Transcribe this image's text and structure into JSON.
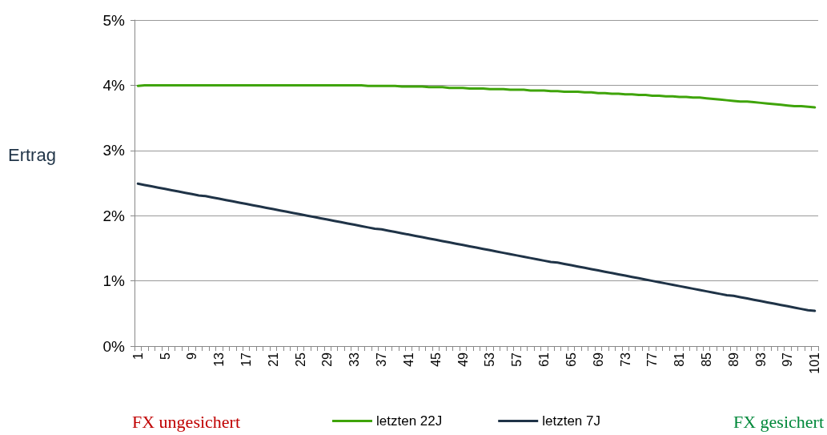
{
  "chart_data": {
    "type": "line",
    "ylabel": "Ertrag",
    "categories": [
      "1",
      null,
      null,
      null,
      "5",
      null,
      null,
      null,
      "9",
      null,
      null,
      null,
      "13",
      null,
      null,
      null,
      "17",
      null,
      null,
      null,
      "21",
      null,
      null,
      null,
      "25",
      null,
      null,
      null,
      "29",
      null,
      null,
      null,
      "33",
      null,
      null,
      null,
      "37",
      null,
      null,
      null,
      "41",
      null,
      null,
      null,
      "45",
      null,
      null,
      null,
      "49",
      null,
      null,
      null,
      "53",
      null,
      null,
      null,
      "57",
      null,
      null,
      null,
      "61",
      null,
      null,
      null,
      "65",
      null,
      null,
      null,
      "69",
      null,
      null,
      null,
      "73",
      null,
      null,
      null,
      "77",
      null,
      null,
      null,
      "81",
      null,
      null,
      null,
      "85",
      null,
      null,
      null,
      "89",
      null,
      null,
      null,
      "93",
      null,
      null,
      null,
      "97",
      null,
      null,
      null,
      "101"
    ],
    "series": [
      {
        "name": "letzten 22J",
        "color": "#3fa40a",
        "values": [
          3.99,
          4.0,
          4.0,
          4.0,
          4.0,
          4.0,
          4.0,
          4.0,
          4.0,
          4.0,
          4.0,
          4.0,
          4.0,
          4.0,
          4.0,
          4.0,
          4.0,
          4.0,
          4.0,
          4.0,
          4.0,
          4.0,
          4.0,
          4.0,
          4.0,
          4.0,
          4.0,
          4.0,
          4.0,
          4.0,
          4.0,
          4.0,
          4.0,
          4.0,
          3.99,
          3.99,
          3.99,
          3.99,
          3.99,
          3.98,
          3.98,
          3.98,
          3.98,
          3.97,
          3.97,
          3.97,
          3.96,
          3.96,
          3.96,
          3.95,
          3.95,
          3.95,
          3.94,
          3.94,
          3.94,
          3.93,
          3.93,
          3.93,
          3.92,
          3.92,
          3.92,
          3.91,
          3.91,
          3.9,
          3.9,
          3.9,
          3.89,
          3.89,
          3.88,
          3.88,
          3.87,
          3.87,
          3.86,
          3.86,
          3.85,
          3.85,
          3.84,
          3.84,
          3.83,
          3.83,
          3.82,
          3.82,
          3.81,
          3.81,
          3.8,
          3.79,
          3.78,
          3.77,
          3.76,
          3.75,
          3.75,
          3.74,
          3.73,
          3.72,
          3.71,
          3.7,
          3.69,
          3.68,
          3.68,
          3.67,
          3.66
        ]
      },
      {
        "name": "letzten 7J",
        "color": "#1f3347",
        "values": [
          2.49,
          2.47,
          2.45,
          2.43,
          2.41,
          2.39,
          2.37,
          2.35,
          2.33,
          2.31,
          2.3,
          2.28,
          2.26,
          2.24,
          2.22,
          2.2,
          2.18,
          2.16,
          2.14,
          2.12,
          2.1,
          2.08,
          2.06,
          2.04,
          2.02,
          2.0,
          1.98,
          1.96,
          1.94,
          1.92,
          1.9,
          1.88,
          1.86,
          1.84,
          1.82,
          1.8,
          1.79,
          1.77,
          1.75,
          1.73,
          1.71,
          1.69,
          1.67,
          1.65,
          1.63,
          1.61,
          1.59,
          1.57,
          1.55,
          1.53,
          1.51,
          1.49,
          1.47,
          1.45,
          1.43,
          1.41,
          1.39,
          1.37,
          1.35,
          1.33,
          1.31,
          1.29,
          1.28,
          1.26,
          1.24,
          1.22,
          1.2,
          1.18,
          1.16,
          1.14,
          1.12,
          1.1,
          1.08,
          1.06,
          1.04,
          1.02,
          1.0,
          0.98,
          0.96,
          0.94,
          0.92,
          0.9,
          0.88,
          0.86,
          0.84,
          0.82,
          0.8,
          0.78,
          0.77,
          0.75,
          0.73,
          0.71,
          0.69,
          0.67,
          0.65,
          0.63,
          0.61,
          0.59,
          0.57,
          0.55,
          0.54
        ]
      }
    ],
    "ylim": [
      0,
      5
    ],
    "yticks": [
      {
        "value": 0,
        "label": "0%"
      },
      {
        "value": 1,
        "label": "1%"
      },
      {
        "value": 2,
        "label": "2%"
      },
      {
        "value": 3,
        "label": "3%"
      },
      {
        "value": 4,
        "label": "4%"
      },
      {
        "value": 5,
        "label": "5%"
      }
    ],
    "grid": "y",
    "legend": "bottom",
    "marker": "none",
    "line_style": "solid",
    "annotations": [
      "FX ungesichert",
      "FX gesichert"
    ]
  }
}
